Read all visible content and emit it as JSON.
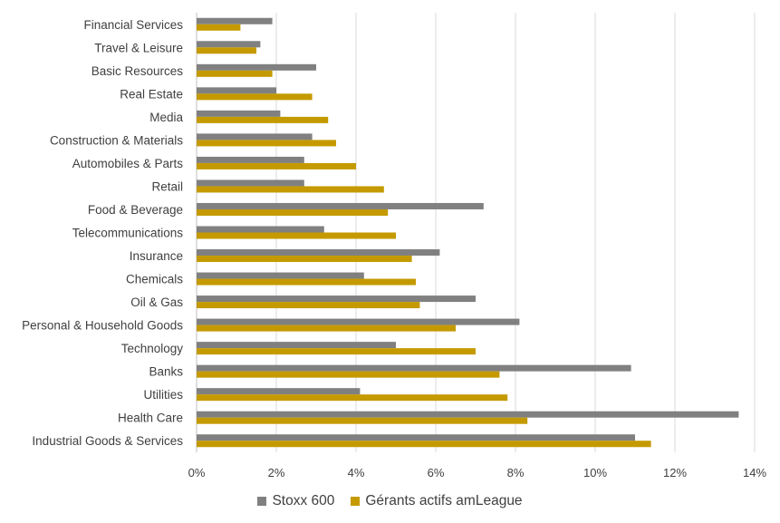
{
  "chart_data": {
    "type": "bar",
    "orientation": "horizontal",
    "categories": [
      "Financial Services",
      "Travel & Leisure",
      "Basic Resources",
      "Real Estate",
      "Media",
      "Construction & Materials",
      "Automobiles & Parts",
      "Retail",
      "Food & Beverage",
      "Telecommunications",
      "Insurance",
      "Chemicals",
      "Oil & Gas",
      "Personal & Household Goods",
      "Technology",
      "Banks",
      "Utilities",
      "Health Care",
      "Industrial Goods & Services"
    ],
    "series": [
      {
        "name": "Stoxx 600",
        "color": "#808080",
        "values": [
          1.9,
          1.6,
          3.0,
          2.0,
          2.1,
          2.9,
          2.7,
          2.7,
          7.2,
          3.2,
          6.1,
          4.2,
          7.0,
          8.1,
          5.0,
          10.9,
          4.1,
          13.6,
          11.0
        ]
      },
      {
        "name": "Gérants actifs amLeague",
        "color": "#C49A00",
        "values": [
          1.1,
          1.5,
          1.9,
          2.9,
          3.3,
          3.5,
          4.0,
          4.7,
          4.8,
          5.0,
          5.4,
          5.5,
          5.6,
          6.5,
          7.0,
          7.6,
          7.8,
          8.3,
          11.4
        ]
      }
    ],
    "x_ticks": [
      "0%",
      "2%",
      "4%",
      "6%",
      "8%",
      "10%",
      "12%",
      "14%"
    ],
    "xlim": [
      0,
      14
    ],
    "xlabel": "",
    "ylabel": "",
    "title": "",
    "grid": "vertical",
    "legend_position": "bottom"
  }
}
